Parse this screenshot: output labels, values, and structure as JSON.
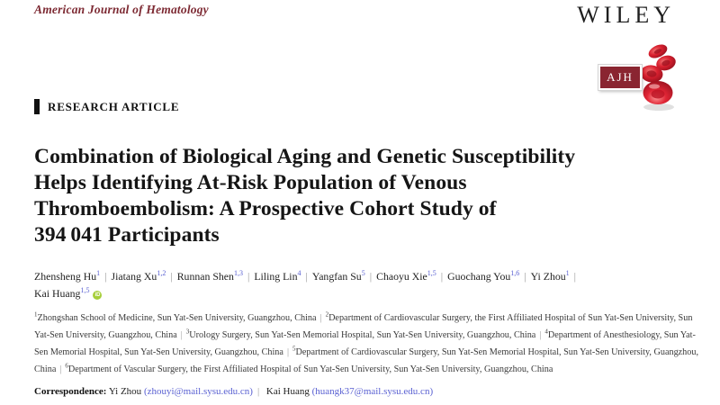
{
  "header": {
    "journal_name": "American Journal of Hematology",
    "publisher_logo": "WILEY",
    "journal_logo_text": "AJH"
  },
  "article": {
    "category_label": "RESEARCH ARTICLE",
    "title_lines": [
      "Combination of Biological Aging and Genetic Susceptibility",
      "Helps Identifying At-Risk Population of Venous",
      "Thromboembolism: A Prospective Cohort Study of",
      "394 041 Participants"
    ],
    "authors": [
      {
        "name": "Zhensheng Hu",
        "sup": "1"
      },
      {
        "name": "Jiatang Xu",
        "sup": "1,2"
      },
      {
        "name": "Runnan Shen",
        "sup": "1,3"
      },
      {
        "name": "Liling Lin",
        "sup": "4"
      },
      {
        "name": "Yangfan Su",
        "sup": "5"
      },
      {
        "name": "Chaoyu Xie",
        "sup": "1,5"
      },
      {
        "name": "Guochang You",
        "sup": "1,6"
      },
      {
        "name": "Yi Zhou",
        "sup": "1"
      },
      {
        "name": "Kai Huang",
        "sup": "1,5",
        "orcid": true
      }
    ],
    "affiliations": [
      {
        "num": "1",
        "text": "Zhongshan School of Medicine, Sun Yat-Sen University, Guangzhou, China"
      },
      {
        "num": "2",
        "text": "Department of Cardiovascular Surgery, the First Affiliated Hospital of Sun Yat-Sen University, Sun Yat-Sen University, Guangzhou, China"
      },
      {
        "num": "3",
        "text": "Urology Surgery, Sun Yat-Sen Memorial Hospital, Sun Yat-Sen University, Guangzhou, China"
      },
      {
        "num": "4",
        "text": "Department of Anesthesiology, Sun Yat-Sen Memorial Hospital, Sun Yat-Sen University, Guangzhou, China"
      },
      {
        "num": "5",
        "text": "Department of Cardiovascular Surgery, Sun Yat-Sen Memorial Hospital, Sun Yat-Sen University, Guangzhou, China"
      },
      {
        "num": "6",
        "text": "Department of Vascular Surgery, the First Affiliated Hospital of Sun Yat-Sen University, Sun Yat-Sen University, Guangzhou, China"
      }
    ],
    "correspondence": {
      "label": "Correspondence:",
      "contacts": [
        {
          "name": "Yi Zhou",
          "email": "zhouyi@mail.sysu.edu.cn"
        },
        {
          "name": "Kai Huang",
          "email": "huangk37@mail.sysu.edu.cn"
        }
      ]
    }
  },
  "icons": {
    "orcid_label": "iD"
  },
  "colors": {
    "brand_maroon": "#8a2531",
    "journal_name_red": "#7d2a33",
    "link_blue": "#5a61d2",
    "orcid_green": "#a6ce39",
    "blood_cell_red": "#c41425"
  }
}
